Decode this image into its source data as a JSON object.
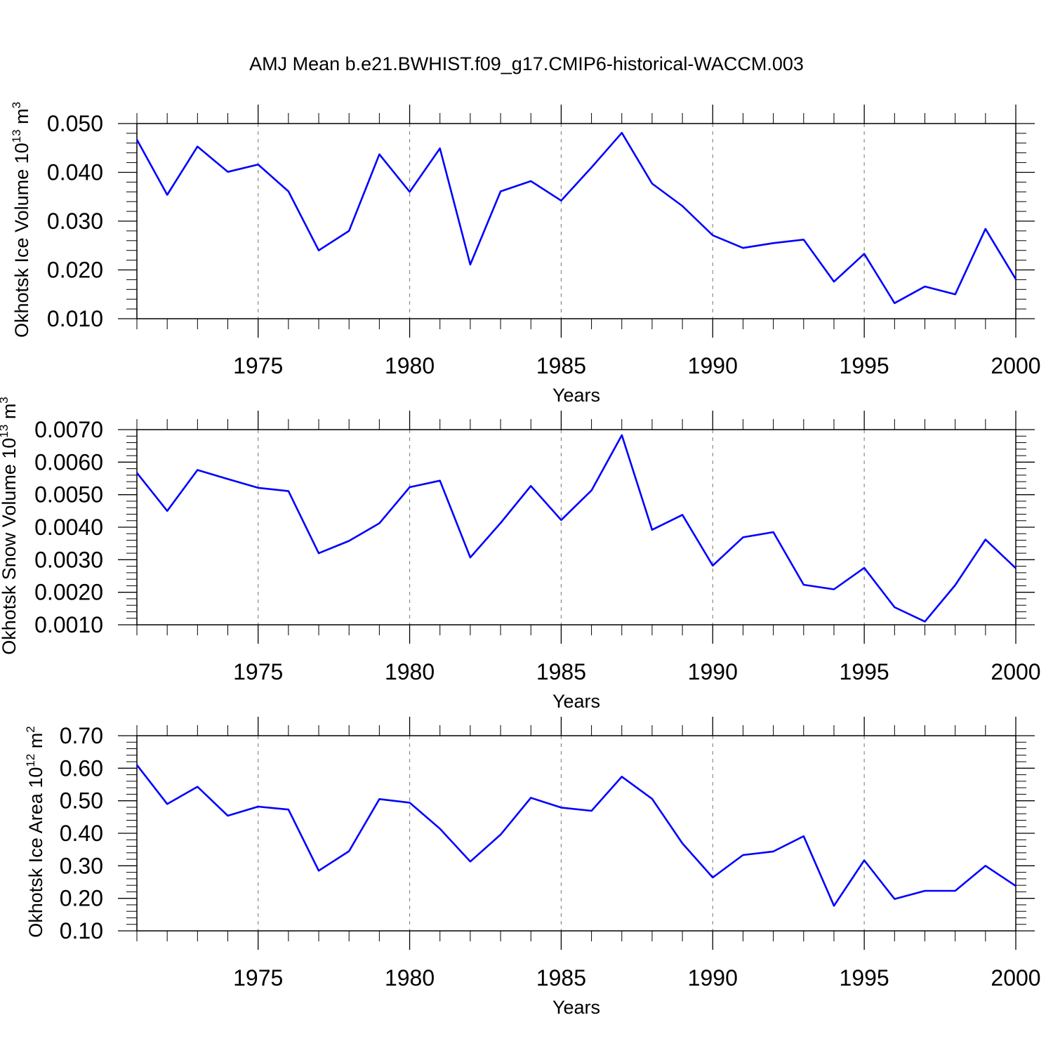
{
  "figure": {
    "title": "AMJ Mean b.e21.BWHIST.f09_g17.CMIP6-historical-WACCM.003"
  },
  "chart_data": [
    {
      "type": "line",
      "xlabel": "Years",
      "ylabel": {
        "text": "Okhotsk Ice Volume 10",
        "sup": "13",
        "unit": " m",
        "unit_sup": "3"
      },
      "xlim": [
        1971,
        2000
      ],
      "ylim": [
        0.01,
        0.05
      ],
      "xticks": [
        1975,
        1980,
        1985,
        1990,
        1995,
        2000
      ],
      "xtick_labels": [
        "1975",
        "1980",
        "1985",
        "1990",
        "1995",
        "2000"
      ],
      "yticks": [
        0.01,
        0.02,
        0.03,
        0.04,
        0.05
      ],
      "ytick_labels": [
        "0.010",
        "0.020",
        "0.030",
        "0.040",
        "0.050"
      ],
      "grid": "vertical dashed at major x ticks",
      "series": [
        {
          "color": "#0000ff",
          "x": [
            1971,
            1972,
            1973,
            1974,
            1975,
            1976,
            1977,
            1978,
            1979,
            1980,
            1981,
            1982,
            1983,
            1984,
            1985,
            1986,
            1987,
            1988,
            1989,
            1990,
            1991,
            1992,
            1993,
            1994,
            1995,
            1996,
            1997,
            1998,
            1999,
            2000
          ],
          "values": [
            0.0467,
            0.0354,
            0.0453,
            0.0401,
            0.0416,
            0.0361,
            0.024,
            0.028,
            0.0437,
            0.036,
            0.0449,
            0.0211,
            0.0361,
            0.0382,
            0.0342,
            0.041,
            0.0481,
            0.0377,
            0.0331,
            0.0271,
            0.0245,
            0.0255,
            0.0262,
            0.0176,
            0.0233,
            0.0132,
            0.0166,
            0.015,
            0.0284,
            0.0181
          ]
        }
      ]
    },
    {
      "type": "line",
      "xlabel": "Years",
      "ylabel": {
        "text": "Okhotsk Snow Volume 10",
        "sup": "13",
        "unit": " m",
        "unit_sup": "3"
      },
      "xlim": [
        1971,
        2000
      ],
      "ylim": [
        0.001,
        0.007
      ],
      "xticks": [
        1975,
        1980,
        1985,
        1990,
        1995,
        2000
      ],
      "xtick_labels": [
        "1975",
        "1980",
        "1985",
        "1990",
        "1995",
        "2000"
      ],
      "yticks": [
        0.001,
        0.002,
        0.003,
        0.004,
        0.005,
        0.006,
        0.007
      ],
      "ytick_labels": [
        "0.0010",
        "0.0020",
        "0.0030",
        "0.0040",
        "0.0050",
        "0.0060",
        "0.0070"
      ],
      "grid": "vertical dashed at major x ticks",
      "series": [
        {
          "color": "#0000ff",
          "x": [
            1971,
            1972,
            1973,
            1974,
            1975,
            1976,
            1977,
            1978,
            1979,
            1980,
            1981,
            1982,
            1983,
            1984,
            1985,
            1986,
            1987,
            1988,
            1989,
            1990,
            1991,
            1992,
            1993,
            1994,
            1995,
            1996,
            1997,
            1998,
            1999,
            2000
          ],
          "values": [
            0.00567,
            0.0045,
            0.00576,
            0.00548,
            0.00521,
            0.00511,
            0.0032,
            0.00358,
            0.00412,
            0.00523,
            0.00543,
            0.00307,
            0.00413,
            0.00527,
            0.00422,
            0.00513,
            0.00683,
            0.00392,
            0.00438,
            0.00282,
            0.00369,
            0.00385,
            0.00223,
            0.00209,
            0.00275,
            0.00154,
            0.0011,
            0.00222,
            0.00362,
            0.00274
          ]
        }
      ]
    },
    {
      "type": "line",
      "xlabel": "Years",
      "ylabel": {
        "text": "Okhotsk Ice Area 10",
        "sup": "12",
        "unit": " m",
        "unit_sup": "2"
      },
      "xlim": [
        1971,
        2000
      ],
      "ylim": [
        0.1,
        0.7
      ],
      "xticks": [
        1975,
        1980,
        1985,
        1990,
        1995,
        2000
      ],
      "xtick_labels": [
        "1975",
        "1980",
        "1985",
        "1990",
        "1995",
        "2000"
      ],
      "yticks": [
        0.1,
        0.2,
        0.3,
        0.4,
        0.5,
        0.6,
        0.7
      ],
      "ytick_labels": [
        "0.10",
        "0.20",
        "0.30",
        "0.40",
        "0.50",
        "0.60",
        "0.70"
      ],
      "grid": "vertical dashed at major x ticks",
      "series": [
        {
          "color": "#0000ff",
          "x": [
            1971,
            1972,
            1973,
            1974,
            1975,
            1976,
            1977,
            1978,
            1979,
            1980,
            1981,
            1982,
            1983,
            1984,
            1985,
            1986,
            1987,
            1988,
            1989,
            1990,
            1991,
            1992,
            1993,
            1994,
            1995,
            1996,
            1997,
            1998,
            1999,
            2000
          ],
          "values": [
            0.61,
            0.49,
            0.543,
            0.454,
            0.482,
            0.473,
            0.285,
            0.345,
            0.505,
            0.494,
            0.414,
            0.313,
            0.396,
            0.509,
            0.479,
            0.469,
            0.574,
            0.506,
            0.369,
            0.264,
            0.333,
            0.344,
            0.391,
            0.177,
            0.317,
            0.198,
            0.223,
            0.223,
            0.3,
            0.238
          ]
        }
      ]
    }
  ]
}
